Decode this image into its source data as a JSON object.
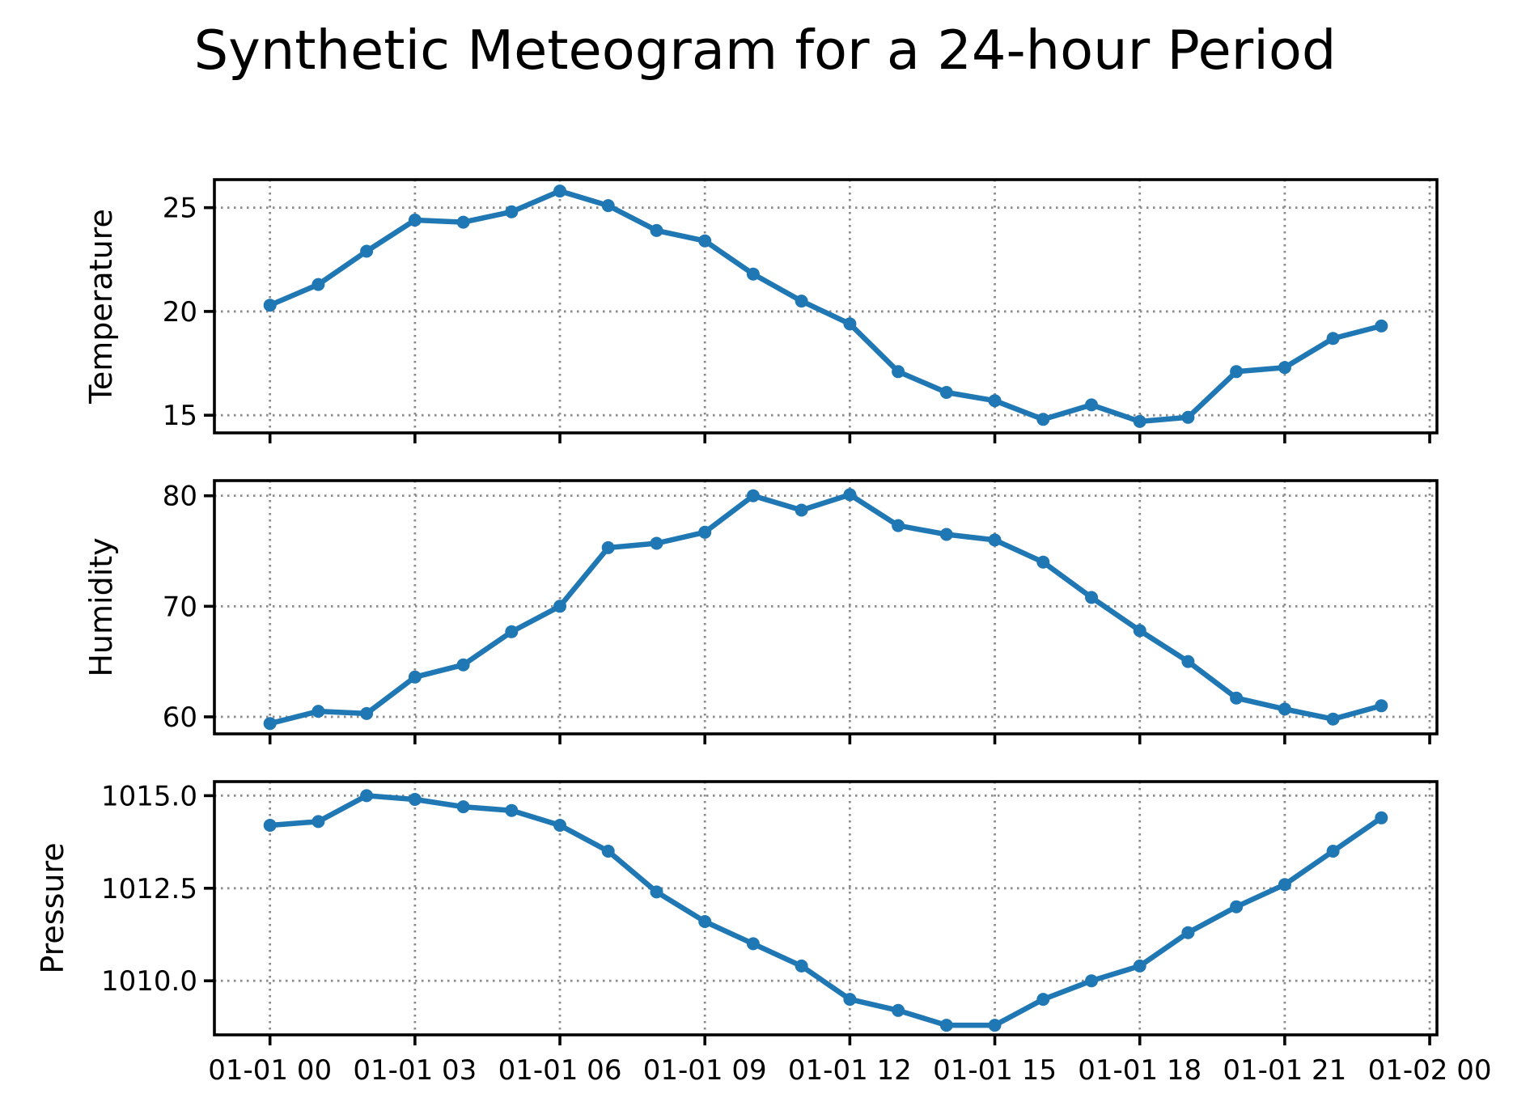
{
  "title": "Synthetic Meteogram for a 24-hour Period",
  "accent_color": "#1f77b4",
  "grid_color": "#8c8c8c",
  "spine_color": "#000000",
  "chart_data": [
    {
      "type": "line",
      "ylabel": "Temperature",
      "marker": "o",
      "grid": true,
      "legend": "none",
      "x_hours": [
        0,
        1,
        2,
        3,
        4,
        5,
        6,
        7,
        8,
        9,
        10,
        11,
        12,
        13,
        14,
        15,
        16,
        17,
        18,
        19,
        20,
        21,
        22,
        23
      ],
      "values": [
        20.3,
        21.3,
        22.9,
        24.4,
        24.3,
        24.8,
        25.8,
        25.1,
        23.9,
        23.4,
        21.8,
        20.5,
        19.4,
        17.1,
        16.1,
        15.7,
        14.8,
        15.5,
        14.7,
        14.9,
        17.1,
        17.3,
        18.7,
        19.3
      ],
      "yticks": [
        15,
        20,
        25
      ],
      "ytick_labels": [
        "15",
        "20",
        "25"
      ],
      "ylim": [
        14.15,
        26.35
      ],
      "show_x_labels": false
    },
    {
      "type": "line",
      "ylabel": "Humidity",
      "marker": "o",
      "grid": true,
      "legend": "none",
      "x_hours": [
        0,
        1,
        2,
        3,
        4,
        5,
        6,
        7,
        8,
        9,
        10,
        11,
        12,
        13,
        14,
        15,
        16,
        17,
        18,
        19,
        20,
        21,
        22,
        23
      ],
      "values": [
        59.4,
        60.5,
        60.3,
        63.6,
        64.7,
        67.7,
        70.0,
        75.3,
        75.7,
        76.7,
        80.0,
        78.7,
        80.1,
        77.3,
        76.5,
        76.0,
        74.0,
        70.8,
        67.8,
        65.0,
        61.7,
        60.7,
        59.8,
        61.0
      ],
      "yticks": [
        60,
        70,
        80
      ],
      "ytick_labels": [
        "60",
        "70",
        "80"
      ],
      "ylim": [
        58.46,
        81.37
      ],
      "show_x_labels": false
    },
    {
      "type": "line",
      "ylabel": "Pressure",
      "marker": "o",
      "grid": true,
      "legend": "none",
      "x_hours": [
        0,
        1,
        2,
        3,
        4,
        5,
        6,
        7,
        8,
        9,
        10,
        11,
        12,
        13,
        14,
        15,
        16,
        17,
        18,
        19,
        20,
        21,
        22,
        23
      ],
      "values": [
        1014.2,
        1014.3,
        1015.0,
        1014.9,
        1014.7,
        1014.6,
        1014.2,
        1013.5,
        1012.4,
        1011.6,
        1011.0,
        1010.4,
        1009.5,
        1009.2,
        1008.8,
        1008.8,
        1009.5,
        1010.0,
        1010.4,
        1011.3,
        1012.0,
        1012.6,
        1013.5,
        1014.4
      ],
      "yticks": [
        1010.0,
        1012.5,
        1015.0
      ],
      "ytick_labels": [
        "1010.0",
        "1012.5",
        "1015.0"
      ],
      "ylim": [
        1008.54,
        1015.38
      ],
      "show_x_labels": true
    }
  ],
  "x_axis": {
    "xlim": [
      -1.15,
      24.15
    ],
    "tick_hours": [
      0,
      3,
      6,
      9,
      12,
      15,
      18,
      21,
      24
    ],
    "tick_labels": [
      "01-01 00",
      "01-01 03",
      "01-01 06",
      "01-01 09",
      "01-01 12",
      "01-01 15",
      "01-01 18",
      "01-01 21",
      "01-02 00"
    ]
  }
}
